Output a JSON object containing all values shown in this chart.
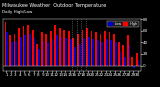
{
  "title": "Milwaukee Weather  Outdoor Temperature",
  "subtitle": "Daily High/Low",
  "high_color": "#ff0000",
  "low_color": "#0000cc",
  "background_color": "#000000",
  "plot_bg": "#000000",
  "bar_width": 0.4,
  "days": [
    1,
    2,
    3,
    4,
    5,
    6,
    7,
    8,
    9,
    10,
    11,
    12,
    13,
    14,
    15,
    16,
    17,
    18,
    19,
    20,
    21,
    22,
    23,
    24,
    25,
    26,
    27,
    28,
    29,
    30
  ],
  "highs": [
    75,
    52,
    55,
    65,
    68,
    70,
    62,
    38,
    58,
    55,
    60,
    70,
    65,
    62,
    60,
    48,
    55,
    62,
    65,
    60,
    58,
    55,
    60,
    58,
    55,
    40,
    35,
    52,
    15,
    22
  ],
  "lows": [
    58,
    40,
    42,
    50,
    52,
    55,
    48,
    28,
    42,
    40,
    46,
    52,
    50,
    48,
    46,
    32,
    38,
    48,
    50,
    46,
    44,
    40,
    46,
    44,
    40,
    25,
    15,
    35,
    -5,
    10
  ],
  "ylim": [
    -10,
    80
  ],
  "ytick_vals": [
    0,
    20,
    40,
    60,
    80
  ],
  "ytick_labels": [
    "0",
    "20",
    "40",
    "60",
    "80"
  ],
  "dotted_lines": [
    14.5,
    15.5,
    16.5,
    17.5
  ],
  "text_color": "#ffffff",
  "grid_color": "#888888",
  "title_fontsize": 3.5,
  "tick_fontsize": 3.0
}
